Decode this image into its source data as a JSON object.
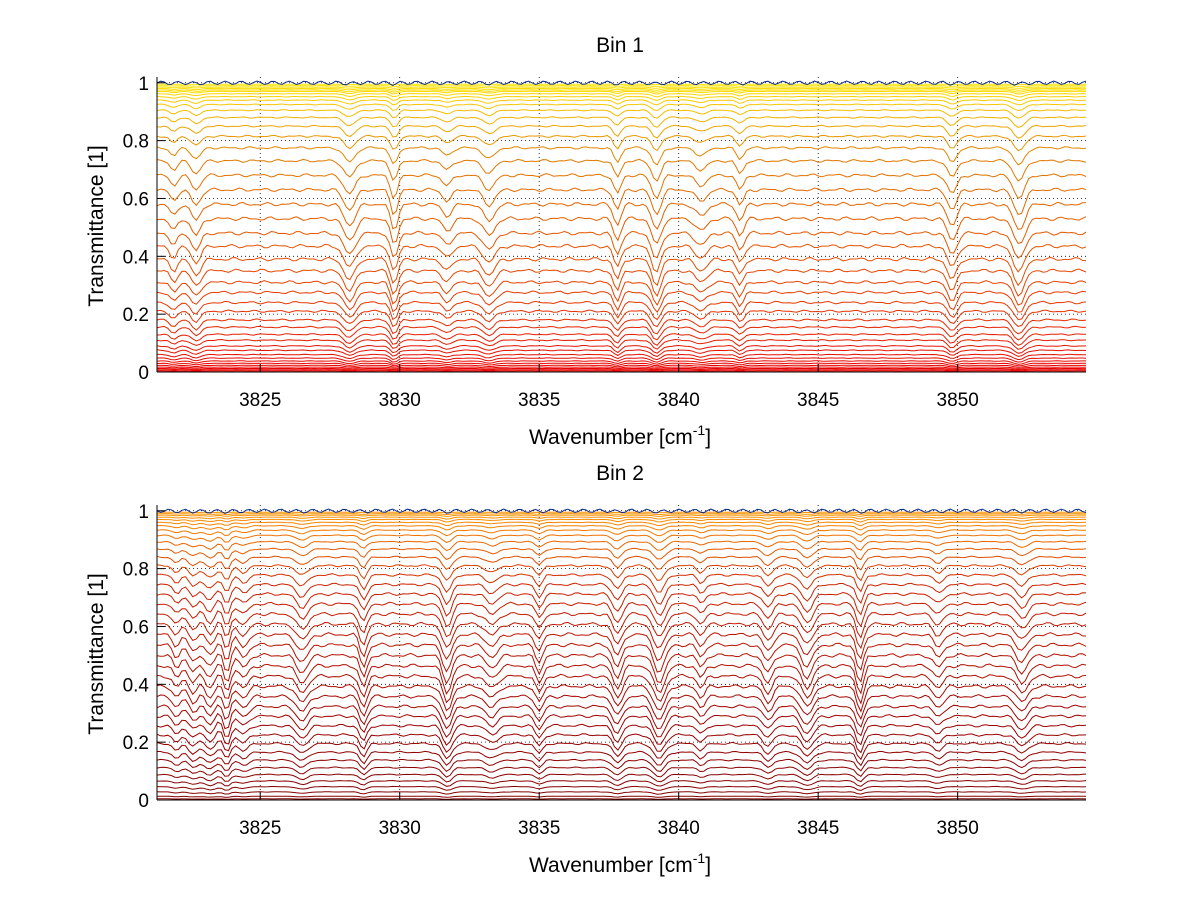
{
  "chart_data": [
    {
      "type": "line",
      "title": "Bin 1",
      "xlabel": {
        "base": "Wavenumber [cm",
        "sup": "-1",
        "close": "]"
      },
      "ylabel": "Transmittance [1]",
      "xlim": [
        3821.3,
        3854.6
      ],
      "ylim": [
        0,
        1.02
      ],
      "xticks": [
        3825,
        3830,
        3835,
        3840,
        3845,
        3850
      ],
      "yticks": [
        0,
        0.2,
        0.4,
        0.6,
        0.8,
        1
      ],
      "ytick_labels": [
        "0",
        "0.2",
        "0.4",
        "0.6",
        "0.8",
        "1"
      ],
      "grid": "dotted",
      "colormap": "blue-yellow-orange-red (autumn)",
      "series_count": 45,
      "series_levels": [
        1.0,
        0.995,
        0.99,
        0.985,
        0.98,
        0.975,
        0.97,
        0.962,
        0.952,
        0.94,
        0.925,
        0.905,
        0.88,
        0.85,
        0.815,
        0.775,
        0.73,
        0.68,
        0.63,
        0.58,
        0.53,
        0.48,
        0.435,
        0.39,
        0.35,
        0.31,
        0.275,
        0.24,
        0.21,
        0.18,
        0.155,
        0.13,
        0.11,
        0.09,
        0.075,
        0.06,
        0.048,
        0.038,
        0.03,
        0.023,
        0.017,
        0.012,
        0.008,
        0.004,
        0.001
      ],
      "absorption_features_cm-1": [
        3821.9,
        3822.7,
        3828.2,
        3829.8,
        3831.7,
        3833.2,
        3837.8,
        3839.2,
        3840.8,
        3842.2,
        3849.8,
        3852.2
      ],
      "colors": {
        "top": "#0b2a8a",
        "upper": "#ffe600",
        "middle": "#e07b00",
        "lower": "#e63a00",
        "bottom": "#e60000"
      }
    },
    {
      "type": "line",
      "title": "Bin 2",
      "xlabel": {
        "base": "Wavenumber [cm",
        "sup": "-1",
        "close": "]"
      },
      "ylabel": "Transmittance [1]",
      "xlim": [
        3821.3,
        3854.6
      ],
      "ylim": [
        0,
        1.02
      ],
      "xticks": [
        3825,
        3830,
        3835,
        3840,
        3845,
        3850
      ],
      "yticks": [
        0,
        0.2,
        0.4,
        0.6,
        0.8,
        1
      ],
      "ytick_labels": [
        "0",
        "0.2",
        "0.4",
        "0.6",
        "0.8",
        "1"
      ],
      "grid": "dotted",
      "colormap": "blue-orange-dark red",
      "series_count": 42,
      "series_levels": [
        1.0,
        0.995,
        0.99,
        0.985,
        0.978,
        0.97,
        0.96,
        0.948,
        0.933,
        0.915,
        0.893,
        0.868,
        0.84,
        0.81,
        0.778,
        0.745,
        0.712,
        0.678,
        0.643,
        0.608,
        0.572,
        0.536,
        0.5,
        0.464,
        0.428,
        0.393,
        0.358,
        0.323,
        0.29,
        0.257,
        0.225,
        0.195,
        0.165,
        0.138,
        0.112,
        0.088,
        0.066,
        0.046,
        0.028,
        0.013,
        0.004,
        0.0
      ],
      "absorption_features_cm-1": [
        3822.0,
        3822.6,
        3823.2,
        3823.8,
        3824.4,
        3826.5,
        3828.7,
        3831.7,
        3833.3,
        3835.0,
        3837.8,
        3839.3,
        3840.8,
        3843.2,
        3844.6,
        3846.5,
        3849.3,
        3852.3
      ],
      "colors": {
        "top": "#0b2a8a",
        "upper": "#ff9900",
        "middle": "#cc2200",
        "lower": "#990000",
        "bottom": "#800000"
      }
    }
  ]
}
